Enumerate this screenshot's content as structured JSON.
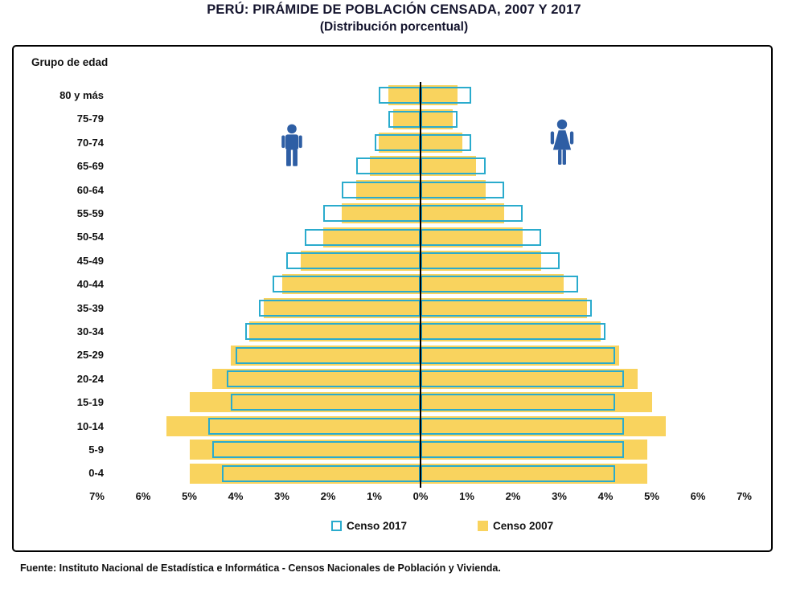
{
  "title": "PERÚ: PIRÁMIDE DE POBLACIÓN CENSADA, 2007 Y 2017",
  "subtitle": "(Distribución porcentual)",
  "source": "Fuente: Instituto Nacional de Estadística e Informática - Censos Nacionales de Población y Vivienda.",
  "colors": {
    "censo2017": "#2AABCD",
    "censo2007": "#F9D35E",
    "icons": "#2E5EA4",
    "axis_line": "#000000"
  },
  "icons": {
    "left": "male-icon",
    "right": "female-icon"
  },
  "chart_data": {
    "type": "bar",
    "subtype": "population-pyramid",
    "title": "PERÚ: PIRÁMIDE DE POBLACIÓN CENSADA, 2007 Y 2017",
    "subtitle": "(Distribución porcentual)",
    "group_label": "Grupo de edad",
    "orientation": "horizontal-mirrored",
    "left_side_icon": "male-icon",
    "right_side_icon": "female-icon",
    "x_unit": "percent",
    "xlim_each_side": 7,
    "grid": false,
    "x_tick_labels": [
      "7%",
      "6%",
      "5%",
      "4%",
      "3%",
      "2%",
      "1%",
      "0%",
      "1%",
      "2%",
      "3%",
      "4%",
      "5%",
      "6%",
      "7%"
    ],
    "age_groups": [
      "80 y más",
      "75-79",
      "70-74",
      "65-69",
      "60-64",
      "55-59",
      "50-54",
      "45-49",
      "40-44",
      "35-39",
      "30-34",
      "25-29",
      "20-24",
      "15-19",
      "10-14",
      "5-9",
      "0-4"
    ],
    "series": {
      "censo2017": {
        "male": [
          0.9,
          0.7,
          1.0,
          1.4,
          1.7,
          2.1,
          2.5,
          2.9,
          3.2,
          3.5,
          3.8,
          4.0,
          4.2,
          4.1,
          4.6,
          4.5,
          4.3
        ],
        "female": [
          1.1,
          0.8,
          1.1,
          1.4,
          1.8,
          2.2,
          2.6,
          3.0,
          3.4,
          3.7,
          4.0,
          4.2,
          4.4,
          4.2,
          4.4,
          4.4,
          4.2
        ]
      },
      "censo2007": {
        "male": [
          0.7,
          0.6,
          0.9,
          1.1,
          1.4,
          1.7,
          2.1,
          2.6,
          3.0,
          3.4,
          3.7,
          4.1,
          4.5,
          5.0,
          5.5,
          5.0,
          5.0
        ],
        "female": [
          0.8,
          0.7,
          0.9,
          1.2,
          1.4,
          1.8,
          2.2,
          2.6,
          3.1,
          3.6,
          3.9,
          4.3,
          4.7,
          5.0,
          5.3,
          4.9,
          4.9
        ]
      }
    },
    "legend": [
      {
        "label": "Censo 2017",
        "style": "outlined",
        "color": "#2AABCD"
      },
      {
        "label": "Censo 2007",
        "style": "filled",
        "color": "#F9D35E"
      }
    ],
    "legend_position": "bottom-inside"
  }
}
